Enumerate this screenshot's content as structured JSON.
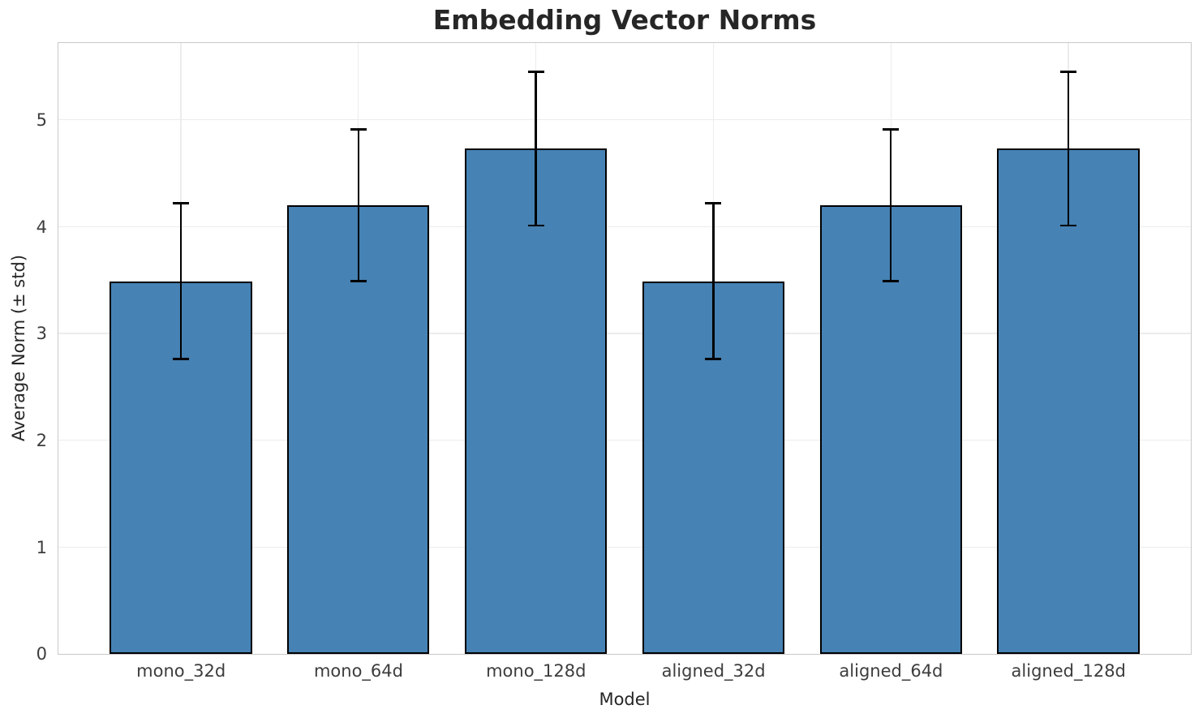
{
  "chart_data": {
    "type": "bar",
    "title": "Embedding Vector Norms",
    "xlabel": "Model",
    "ylabel": "Average Norm (± std)",
    "categories": [
      "mono_32d",
      "mono_64d",
      "mono_128d",
      "aligned_32d",
      "aligned_64d",
      "aligned_128d"
    ],
    "series": [
      {
        "name": "Average Norm",
        "values": [
          3.49,
          4.2,
          4.73,
          3.49,
          4.2,
          4.73
        ],
        "errors": [
          0.73,
          0.71,
          0.72,
          0.73,
          0.71,
          0.72
        ]
      }
    ],
    "yticks": [
      0,
      1,
      2,
      3,
      4,
      5
    ],
    "ylim": [
      0,
      5.72
    ],
    "xlim": [
      -0.69,
      5.69
    ],
    "bar_width_units": 0.8,
    "grid": "both",
    "legend": "none",
    "colors": {
      "bar_fill": "#4682b4",
      "bar_edge": "#000000",
      "error_bar": "#000000",
      "grid": "#ececec",
      "spine": "#c9c9c9",
      "title_text": "#262626",
      "tick_text": "#3d3d3d"
    }
  }
}
